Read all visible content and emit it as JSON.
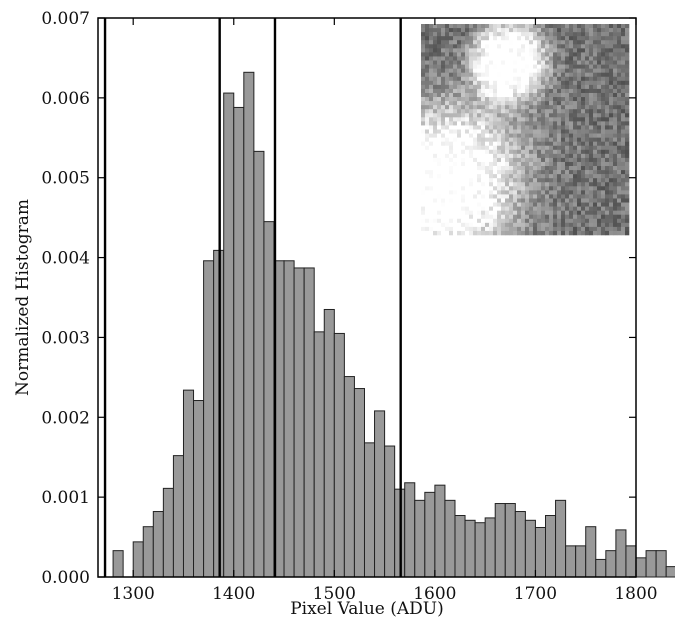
{
  "chart_data": {
    "type": "bar",
    "title": "",
    "xlabel": "Pixel Value (ADU)",
    "ylabel": "Normalized Histogram",
    "xlim": [
      1265,
      1800
    ],
    "ylim": [
      0,
      0.007
    ],
    "xticks": [
      1300,
      1400,
      1500,
      1600,
      1700,
      1800
    ],
    "yticks": [
      0.0,
      0.001,
      0.002,
      0.003,
      0.004,
      0.005,
      0.006,
      0.007
    ],
    "ytick_labels": [
      "0.000",
      "0.001",
      "0.002",
      "0.003",
      "0.004",
      "0.005",
      "0.006",
      "0.007"
    ],
    "grid": false,
    "bin_width": 10,
    "bin_start": 1280,
    "values": [
      0.00033,
      0,
      0.00044,
      0.00063,
      0.00082,
      0.00111,
      0.00152,
      0.00234,
      0.00221,
      0.00396,
      0.00409,
      0.00606,
      0.00588,
      0.00632,
      0.00533,
      0.00445,
      0.00396,
      0.00396,
      0.00387,
      0.00387,
      0.00307,
      0.00335,
      0.00305,
      0.00251,
      0.00236,
      0.00168,
      0.00208,
      0.00164,
      0.0011,
      0.00118,
      0.00096,
      0.00106,
      0.00115,
      0.00096,
      0.00077,
      0.00071,
      0.00068,
      0.00074,
      0.00092,
      0.00092,
      0.00082,
      0.00071,
      0.00062,
      0.00077,
      0.00096,
      0.00039,
      0.00039,
      0.00063,
      0.00022,
      0.00033,
      0.00059,
      0.00039,
      0.00024,
      0.00033,
      0.00033,
      0.00013
    ],
    "bar_color": "#999999",
    "vertical_lines": [
      1272,
      1386,
      1441,
      1566
    ],
    "line_color": "#000000",
    "inset": {
      "type": "grayscale-image",
      "description": "noisy grayscale cutout with two bright blobs",
      "position": "top-right"
    }
  }
}
